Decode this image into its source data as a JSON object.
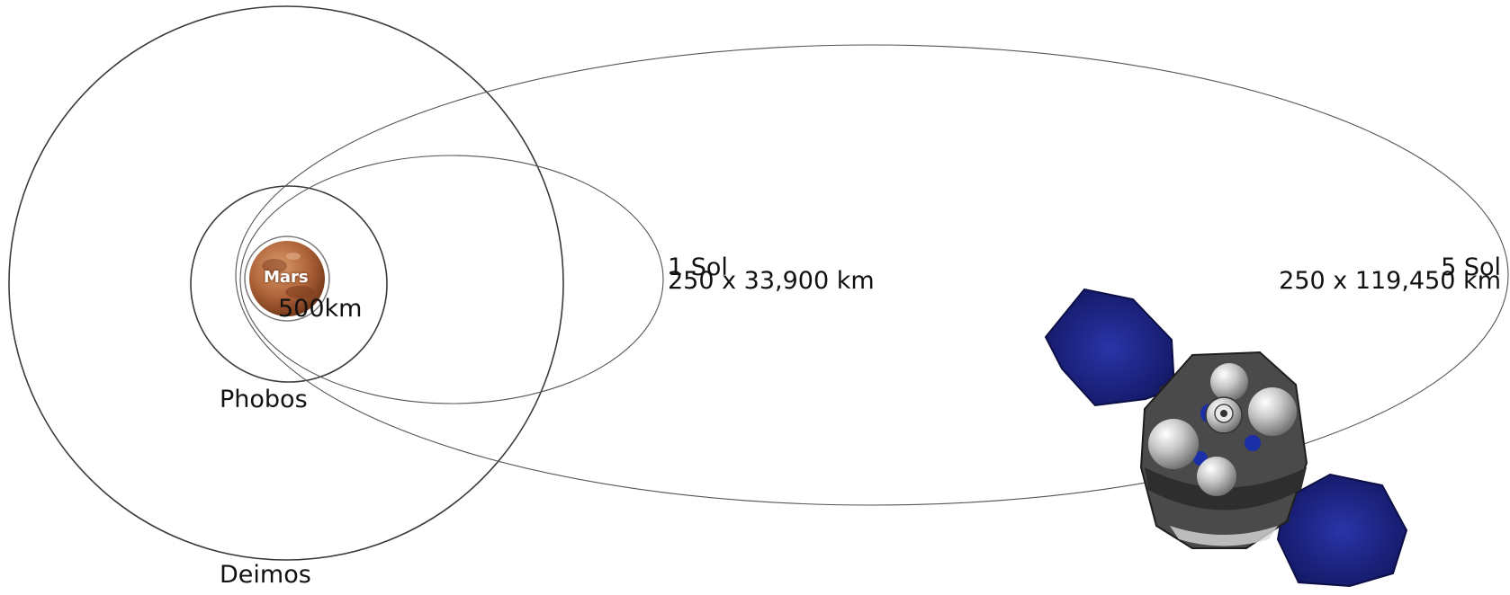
{
  "labels": {
    "mars": "Mars",
    "low_orbit": "500km",
    "phobos": "Phobos",
    "deimos": "Deimos",
    "orbit_1sol_name": "1 Sol",
    "orbit_1sol_dims": "250 x 33,900 km",
    "orbit_5sol_name": "5 Sol",
    "orbit_5sol_dims": "250 x 119,450 km"
  },
  "colors": {
    "orbit_line": "#3a3a3a",
    "mars_surface": "#b86a3e",
    "solar_panel": "#1a1f7a",
    "spacecraft_body": "#4a4a4a",
    "tank": "#c9c9c9"
  }
}
